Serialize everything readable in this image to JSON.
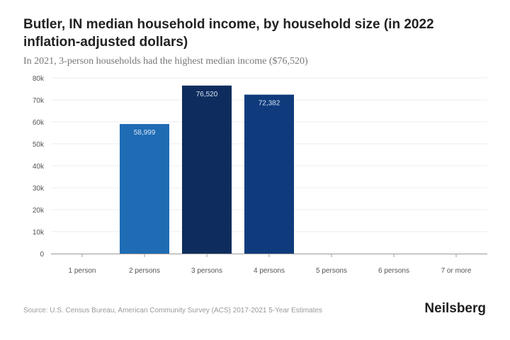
{
  "chart_data": {
    "type": "bar",
    "title": "Butler, IN median household income, by household size (in 2022 inflation-adjusted dollars)",
    "subtitle": "In 2021, 3-person households had the highest median income ($76,520)",
    "categories": [
      "1 person",
      "2 persons",
      "3 persons",
      "4 persons",
      "5 persons",
      "6 persons",
      "7 or more"
    ],
    "values": [
      null,
      58999,
      76520,
      72382,
      null,
      null,
      null
    ],
    "value_labels": [
      "",
      "58,999",
      "76,520",
      "72,382",
      "",
      "",
      ""
    ],
    "bar_colors": [
      "#1f6cb5",
      "#1f6cb5",
      "#0e2d5e",
      "#0f3b7c",
      "#1f6cb5",
      "#1f6cb5",
      "#1f6cb5"
    ],
    "ylim": [
      0,
      80000
    ],
    "yticks": [
      0,
      10000,
      20000,
      30000,
      40000,
      50000,
      60000,
      70000,
      80000
    ],
    "ytick_labels": [
      "0",
      "10k",
      "20k",
      "30k",
      "40k",
      "50k",
      "60k",
      "70k",
      "80k"
    ],
    "xlabel": "",
    "ylabel": "",
    "grid": true
  },
  "footer": {
    "source": "Source: U.S. Census Bureau, American Community Survey (ACS) 2017-2021 5-Year Estimates",
    "brand": "Neilsberg"
  }
}
